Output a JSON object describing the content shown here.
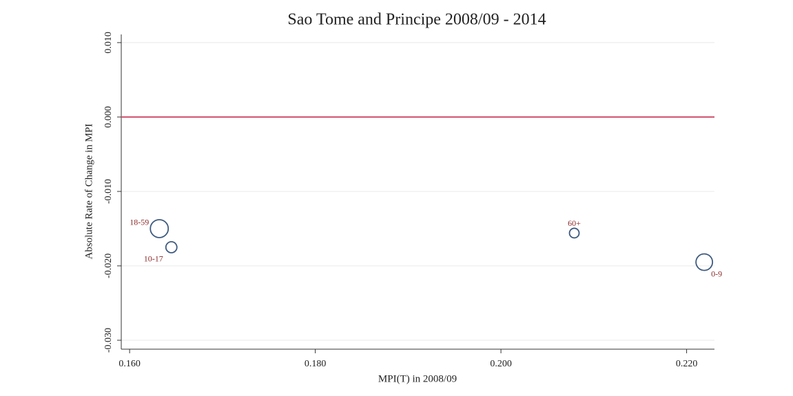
{
  "chart_data": {
    "type": "scatter",
    "title": "Sao Tome and Principe 2008/09 - 2014",
    "x_label": "MPI(T) in 2008/09",
    "y_label": "Absolute Rate of Change in MPI",
    "point_labels": [
      "18-59",
      "10-17",
      "60+",
      "0-9"
    ],
    "x": [
      0.1632,
      0.1645,
      0.2079,
      0.2219
    ],
    "values": [
      -0.015,
      -0.0175,
      -0.0156,
      -0.0195
    ],
    "sizes": [
      169,
      64,
      49,
      144
    ],
    "label_positions": [
      "left",
      "below-left",
      "above",
      "below-right"
    ],
    "color": "#3d5a80",
    "label_color": "#8b2a2a",
    "reference_line": {
      "value": 0,
      "color": "#d0506a"
    },
    "xlim": [
      0.1591,
      0.223
    ],
    "ylim": [
      -0.0312,
      0.0111
    ],
    "xticks": [
      {
        "value": 0.16,
        "label": "0.160"
      },
      {
        "value": 0.18,
        "label": "0.180"
      },
      {
        "value": 0.2,
        "label": "0.200"
      },
      {
        "value": 0.22,
        "label": "0.220"
      }
    ],
    "yticks": [
      {
        "value": 0.01,
        "label": "0.010"
      },
      {
        "value": 0,
        "label": "0.000"
      },
      {
        "value": -0.01,
        "label": "-0.010"
      },
      {
        "value": -0.02,
        "label": "-0.020"
      },
      {
        "value": -0.03,
        "label": "-0.030"
      }
    ],
    "grid": true
  }
}
